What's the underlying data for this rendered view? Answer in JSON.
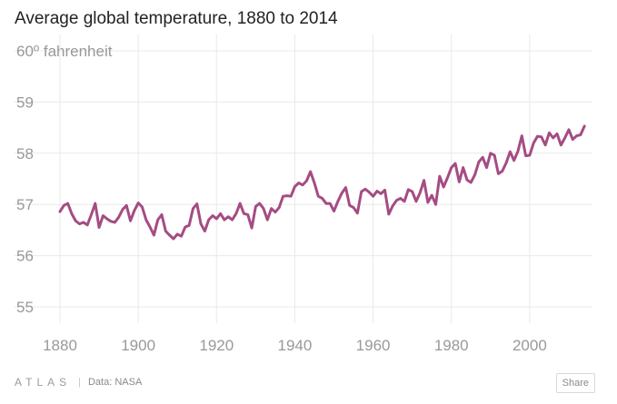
{
  "chart_data": {
    "type": "line",
    "title": "Average global temperature, 1880 to 2014",
    "ylabel": "fahrenheit",
    "y_top_label": "60º fahrenheit",
    "ylim": [
      55,
      60
    ],
    "xlim": [
      1880,
      2015
    ],
    "y_ticks": [
      55,
      56,
      57,
      58,
      59,
      60
    ],
    "y_tick_labels": [
      "55",
      "56",
      "57",
      "58",
      "59",
      "60º fahrenheit"
    ],
    "x_ticks": [
      1880,
      1900,
      1920,
      1940,
      1960,
      1980,
      2000
    ],
    "x_tick_labels": [
      "1880",
      "1900",
      "1920",
      "1940",
      "1960",
      "1980",
      "2000"
    ],
    "grid": true,
    "series": [
      {
        "name": "Average global temperature",
        "color": "#a54c83",
        "x": [
          1880,
          1881,
          1882,
          1883,
          1884,
          1885,
          1886,
          1887,
          1888,
          1889,
          1890,
          1891,
          1892,
          1893,
          1894,
          1895,
          1896,
          1897,
          1898,
          1899,
          1900,
          1901,
          1902,
          1903,
          1904,
          1905,
          1906,
          1907,
          1908,
          1909,
          1910,
          1911,
          1912,
          1913,
          1914,
          1915,
          1916,
          1917,
          1918,
          1919,
          1920,
          1921,
          1922,
          1923,
          1924,
          1925,
          1926,
          1927,
          1928,
          1929,
          1930,
          1931,
          1932,
          1933,
          1934,
          1935,
          1936,
          1937,
          1938,
          1939,
          1940,
          1941,
          1942,
          1943,
          1944,
          1945,
          1946,
          1947,
          1948,
          1949,
          1950,
          1951,
          1952,
          1953,
          1954,
          1955,
          1956,
          1957,
          1958,
          1959,
          1960,
          1961,
          1962,
          1963,
          1964,
          1965,
          1966,
          1967,
          1968,
          1969,
          1970,
          1971,
          1972,
          1973,
          1974,
          1975,
          1976,
          1977,
          1978,
          1979,
          1980,
          1981,
          1982,
          1983,
          1984,
          1985,
          1986,
          1987,
          1988,
          1989,
          1990,
          1991,
          1992,
          1993,
          1994,
          1995,
          1996,
          1997,
          1998,
          1999,
          2000,
          2001,
          2002,
          2003,
          2004,
          2005,
          2006,
          2007,
          2008,
          2009,
          2010,
          2011,
          2012,
          2013,
          2014
        ],
        "values": [
          56.86,
          56.98,
          57.02,
          56.82,
          56.68,
          56.62,
          56.65,
          56.6,
          56.8,
          57.02,
          56.55,
          56.78,
          56.72,
          56.67,
          56.65,
          56.75,
          56.9,
          56.98,
          56.68,
          56.88,
          57.03,
          56.95,
          56.7,
          56.56,
          56.4,
          56.7,
          56.8,
          56.48,
          56.4,
          56.33,
          56.42,
          56.38,
          56.56,
          56.59,
          56.92,
          57.01,
          56.62,
          56.48,
          56.7,
          56.78,
          56.72,
          56.82,
          56.7,
          56.76,
          56.7,
          56.82,
          57.02,
          56.82,
          56.8,
          56.54,
          56.96,
          57.02,
          56.92,
          56.7,
          56.92,
          56.85,
          56.94,
          57.16,
          57.17,
          57.16,
          57.35,
          57.42,
          57.38,
          57.46,
          57.64,
          57.42,
          57.16,
          57.12,
          57.02,
          57.02,
          56.87,
          57.06,
          57.22,
          57.33,
          56.98,
          56.94,
          56.83,
          57.25,
          57.3,
          57.24,
          57.16,
          57.26,
          57.21,
          57.28,
          56.81,
          56.97,
          57.08,
          57.12,
          57.06,
          57.29,
          57.25,
          57.06,
          57.23,
          57.47,
          57.04,
          57.18,
          57.0,
          57.55,
          57.34,
          57.52,
          57.72,
          57.8,
          57.44,
          57.72,
          57.48,
          57.43,
          57.58,
          57.83,
          57.92,
          57.72,
          58.0,
          57.96,
          57.6,
          57.65,
          57.81,
          58.03,
          57.86,
          58.04,
          58.34,
          57.95,
          57.96,
          58.2,
          58.33,
          58.32,
          58.16,
          58.4,
          58.3,
          58.38,
          58.16,
          58.3,
          58.46,
          58.27,
          58.34,
          58.36,
          58.53
        ]
      }
    ]
  },
  "footer": {
    "brand": "ATLAS",
    "separator": "|",
    "source": "Data:  NASA",
    "share_label": "Share"
  }
}
